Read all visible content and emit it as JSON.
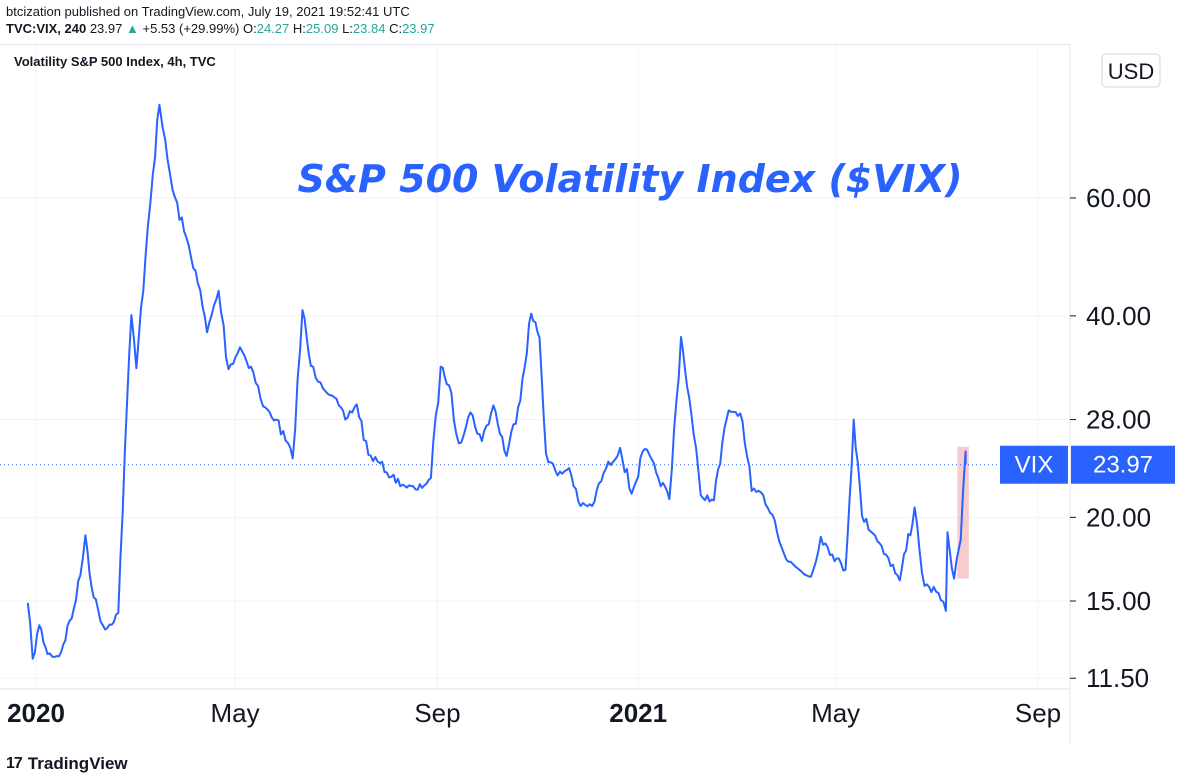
{
  "header": {
    "published": "btcization published on TradingView.com, July 19, 2021 19:52:41 UTC",
    "symbol": "TVC:VIX, 240",
    "last": "23.97",
    "change": "+5.53 (+29.99%)",
    "o_label": "O:",
    "o": "24.27",
    "h_label": "H:",
    "h": "25.09",
    "l_label": "L:",
    "l": "23.84",
    "c_label": "C:",
    "c": "23.97"
  },
  "footer": {
    "logo_mark": "17",
    "logo_text": "TradingView"
  },
  "chart_data": {
    "type": "line",
    "pane_title": "Volatility S&P 500 Index, 4h, TVC",
    "annotation": "S&P 500 Volatility Index ($VIX)",
    "currency": "USD",
    "scale": "log",
    "ylim": [
      11.5,
      80
    ],
    "y_ticks": [
      "60.00",
      "40.00",
      "28.00",
      "20.00",
      "15.00",
      "11.50"
    ],
    "y_tick_values": [
      60,
      40,
      28,
      20,
      15,
      11.5
    ],
    "x_ticks": [
      {
        "label": "2020",
        "date": "2020-01-01",
        "bold": true
      },
      {
        "label": "May",
        "date": "2020-05-01",
        "bold": false
      },
      {
        "label": "Sep",
        "date": "2020-09-01",
        "bold": false
      },
      {
        "label": "2021",
        "date": "2021-01-01",
        "bold": true
      },
      {
        "label": "May",
        "date": "2021-05-01",
        "bold": false
      },
      {
        "label": "Sep",
        "date": "2021-09-01",
        "bold": false
      }
    ],
    "last_price_label": {
      "name": "VIX",
      "value": "23.97",
      "numeric": 23.97
    },
    "colors": {
      "line": "#2962ff",
      "title": "#2962ff",
      "label_bg": "#2962ff",
      "highlight": "#f4b6b9"
    },
    "highlight": {
      "x_start": "2021-07-14",
      "x_end": "2021-07-21",
      "y_low": 16.2,
      "y_high": 25.5
    },
    "series": [
      {
        "values": [
          [
            "2019-12-27",
            14.9
          ],
          [
            "2019-12-30",
            12.3
          ],
          [
            "2020-01-03",
            13.8
          ],
          [
            "2020-01-08",
            12.5
          ],
          [
            "2020-01-15",
            12.4
          ],
          [
            "2020-01-24",
            14.6
          ],
          [
            "2020-01-28",
            16.4
          ],
          [
            "2020-01-31",
            18.8
          ],
          [
            "2020-02-05",
            15.2
          ],
          [
            "2020-02-12",
            13.6
          ],
          [
            "2020-02-20",
            14.4
          ],
          [
            "2020-02-24",
            25.0
          ],
          [
            "2020-02-28",
            40.1
          ],
          [
            "2020-03-02",
            33.4
          ],
          [
            "2020-03-09",
            54.5
          ],
          [
            "2020-03-12",
            65.0
          ],
          [
            "2020-03-16",
            82.7
          ],
          [
            "2020-03-18",
            76.4
          ],
          [
            "2020-03-24",
            61.7
          ],
          [
            "2020-03-31",
            53.5
          ],
          [
            "2020-04-07",
            46.7
          ],
          [
            "2020-04-14",
            37.8
          ],
          [
            "2020-04-21",
            43.6
          ],
          [
            "2020-04-27",
            33.3
          ],
          [
            "2020-05-04",
            35.9
          ],
          [
            "2020-05-12",
            33.0
          ],
          [
            "2020-05-18",
            29.3
          ],
          [
            "2020-05-26",
            28.0
          ],
          [
            "2020-06-05",
            24.5
          ],
          [
            "2020-06-11",
            40.8
          ],
          [
            "2020-06-16",
            33.7
          ],
          [
            "2020-06-22",
            31.8
          ],
          [
            "2020-06-29",
            30.4
          ],
          [
            "2020-07-07",
            28.0
          ],
          [
            "2020-07-14",
            29.5
          ],
          [
            "2020-07-21",
            24.8
          ],
          [
            "2020-07-28",
            24.1
          ],
          [
            "2020-08-04",
            23.0
          ],
          [
            "2020-08-12",
            22.3
          ],
          [
            "2020-08-20",
            22.0
          ],
          [
            "2020-08-28",
            22.9
          ],
          [
            "2020-09-03",
            33.6
          ],
          [
            "2020-09-08",
            31.5
          ],
          [
            "2020-09-14",
            25.8
          ],
          [
            "2020-09-21",
            28.7
          ],
          [
            "2020-09-28",
            26.0
          ],
          [
            "2020-10-05",
            29.4
          ],
          [
            "2020-10-13",
            24.7
          ],
          [
            "2020-10-20",
            29.2
          ],
          [
            "2020-10-28",
            40.3
          ],
          [
            "2020-11-02",
            37.1
          ],
          [
            "2020-11-06",
            24.9
          ],
          [
            "2020-11-13",
            23.1
          ],
          [
            "2020-11-20",
            23.7
          ],
          [
            "2020-11-27",
            20.8
          ],
          [
            "2020-12-04",
            20.8
          ],
          [
            "2020-12-11",
            23.3
          ],
          [
            "2020-12-21",
            25.4
          ],
          [
            "2020-12-28",
            21.7
          ],
          [
            "2021-01-05",
            25.3
          ],
          [
            "2021-01-12",
            23.3
          ],
          [
            "2021-01-20",
            21.3
          ],
          [
            "2021-01-27",
            37.2
          ],
          [
            "2021-02-01",
            30.2
          ],
          [
            "2021-02-08",
            21.6
          ],
          [
            "2021-02-16",
            21.2
          ],
          [
            "2021-02-25",
            28.9
          ],
          [
            "2021-03-04",
            28.6
          ],
          [
            "2021-03-11",
            21.9
          ],
          [
            "2021-03-18",
            21.6
          ],
          [
            "2021-03-25",
            19.8
          ],
          [
            "2021-04-01",
            17.3
          ],
          [
            "2021-04-09",
            16.7
          ],
          [
            "2021-04-16",
            16.3
          ],
          [
            "2021-04-22",
            18.7
          ],
          [
            "2021-04-29",
            17.6
          ],
          [
            "2021-05-07",
            16.7
          ],
          [
            "2021-05-12",
            28.0
          ],
          [
            "2021-05-17",
            20.1
          ],
          [
            "2021-05-25",
            18.8
          ],
          [
            "2021-06-02",
            17.4
          ],
          [
            "2021-06-09",
            16.1
          ],
          [
            "2021-06-18",
            20.7
          ],
          [
            "2021-06-24",
            15.8
          ],
          [
            "2021-07-01",
            15.5
          ],
          [
            "2021-07-07",
            14.5
          ],
          [
            "2021-07-08",
            19.0
          ],
          [
            "2021-07-12",
            16.2
          ],
          [
            "2021-07-15",
            18.0
          ],
          [
            "2021-07-16",
            18.5
          ],
          [
            "2021-07-19",
            25.09
          ],
          [
            "2021-07-19",
            23.97
          ]
        ]
      }
    ]
  }
}
